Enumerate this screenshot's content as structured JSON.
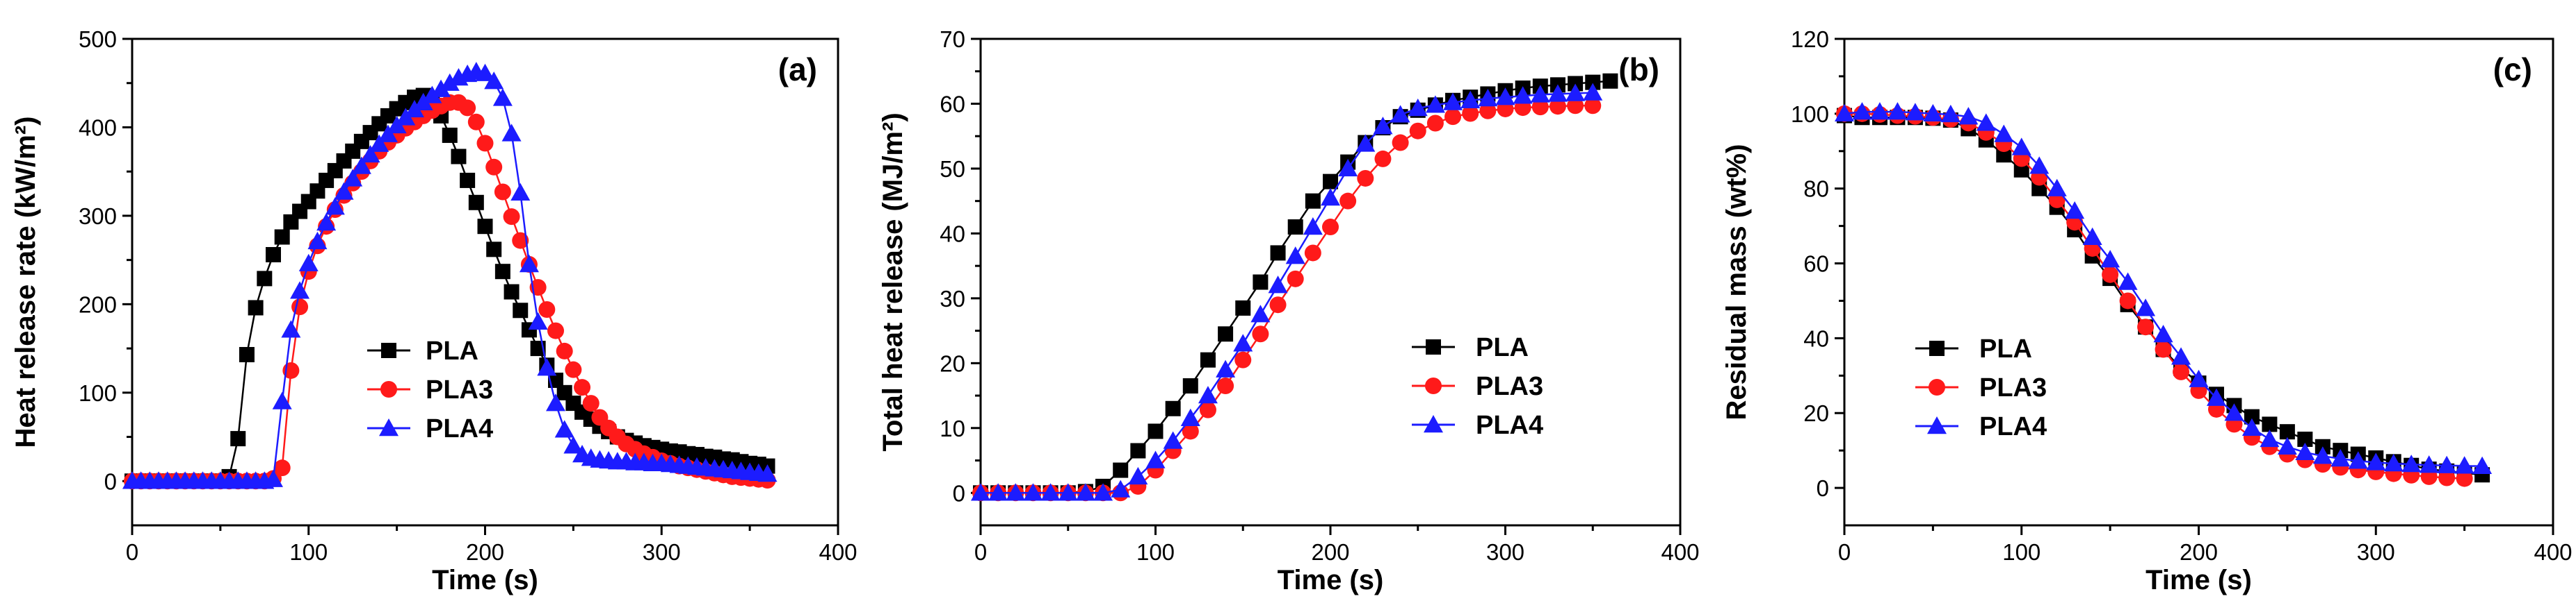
{
  "colors": {
    "PLA": "#000000",
    "PLA3": "#ff1a1a",
    "PLA4": "#1c1cff"
  },
  "markers": {
    "PLA": "square",
    "PLA3": "circle",
    "PLA4": "triangle"
  },
  "chart_data": [
    {
      "type": "line",
      "panel_label": "(a)",
      "xlabel": "Time (s)",
      "ylabel": "Heat release rate (kW/m²)",
      "xlim": [
        0,
        400
      ],
      "ylim": [
        -50,
        500
      ],
      "xticks": [
        0,
        100,
        200,
        300,
        400
      ],
      "yticks": [
        0,
        100,
        200,
        300,
        400,
        500
      ],
      "legend": [
        "PLA",
        "PLA3",
        "PLA4"
      ],
      "series": [
        {
          "name": "PLA",
          "x": [
            0,
            5,
            10,
            15,
            20,
            25,
            30,
            35,
            40,
            45,
            50,
            55,
            60,
            65,
            70,
            75,
            80,
            85,
            90,
            95,
            100,
            105,
            110,
            115,
            120,
            125,
            130,
            135,
            140,
            145,
            150,
            155,
            160,
            165,
            170,
            175,
            180,
            185,
            190,
            195,
            200,
            205,
            210,
            215,
            220,
            225,
            230,
            235,
            240,
            245,
            250,
            255,
            260,
            265,
            270,
            275,
            280,
            285,
            290,
            295,
            300,
            305,
            310,
            315,
            320,
            325,
            330,
            335,
            340,
            345,
            350,
            355,
            360
          ],
          "y": [
            0,
            0,
            0,
            0,
            0,
            0,
            0,
            0,
            0,
            0,
            0,
            5,
            48,
            143,
            196,
            229,
            256,
            276,
            293,
            305,
            316,
            328,
            340,
            351,
            362,
            373,
            384,
            394,
            404,
            413,
            421,
            428,
            434,
            436,
            428,
            413,
            391,
            367,
            340,
            315,
            288,
            262,
            237,
            214,
            193,
            171,
            150,
            131,
            114,
            100,
            88,
            78,
            70,
            62,
            56,
            50,
            46,
            43,
            40,
            38,
            36,
            34,
            33,
            31,
            30,
            28,
            27,
            25,
            24,
            22,
            20,
            19,
            17
          ]
        },
        {
          "name": "PLA3",
          "x": [
            0,
            5,
            10,
            15,
            20,
            25,
            30,
            35,
            40,
            45,
            50,
            55,
            60,
            65,
            70,
            75,
            80,
            85,
            90,
            95,
            100,
            105,
            110,
            115,
            120,
            125,
            130,
            135,
            140,
            145,
            150,
            155,
            160,
            165,
            170,
            175,
            180,
            185,
            190,
            195,
            200,
            205,
            210,
            215,
            220,
            225,
            230,
            235,
            240,
            245,
            250,
            255,
            260,
            265,
            270,
            275,
            280,
            285,
            290,
            295,
            300,
            305,
            310,
            315,
            320,
            325,
            330,
            335,
            340,
            345,
            350,
            355,
            360
          ],
          "y": [
            0,
            0,
            0,
            0,
            0,
            0,
            0,
            0,
            0,
            0,
            0,
            0,
            0,
            0,
            0,
            0,
            3,
            15,
            125,
            197,
            237,
            266,
            288,
            307,
            323,
            337,
            350,
            362,
            373,
            383,
            391,
            399,
            406,
            413,
            419,
            424,
            428,
            428,
            422,
            406,
            382,
            355,
            327,
            299,
            272,
            245,
            219,
            194,
            170,
            147,
            126,
            106,
            88,
            72,
            60,
            50,
            42,
            36,
            31,
            27,
            23,
            20,
            17,
            15,
            13,
            11,
            9,
            7,
            5,
            4,
            3,
            2,
            1
          ]
        },
        {
          "name": "PLA4",
          "x": [
            0,
            5,
            10,
            15,
            20,
            25,
            30,
            35,
            40,
            45,
            50,
            55,
            60,
            65,
            70,
            75,
            80,
            85,
            90,
            95,
            100,
            105,
            110,
            115,
            120,
            125,
            130,
            135,
            140,
            145,
            150,
            155,
            160,
            165,
            170,
            175,
            180,
            185,
            190,
            195,
            200,
            205,
            210,
            215,
            220,
            225,
            230,
            235,
            240,
            245,
            250,
            255,
            260,
            265,
            270,
            275,
            280,
            285,
            290,
            295,
            300,
            305,
            310,
            315,
            320,
            325,
            330,
            335,
            340,
            345,
            350,
            355,
            360
          ],
          "y": [
            0,
            0,
            0,
            0,
            0,
            0,
            0,
            0,
            0,
            0,
            0,
            0,
            0,
            0,
            0,
            0,
            2,
            90,
            171,
            215,
            246,
            271,
            292,
            310,
            327,
            342,
            356,
            369,
            381,
            392,
            402,
            411,
            420,
            428,
            436,
            443,
            450,
            456,
            460,
            463,
            461,
            452,
            433,
            393,
            326,
            245,
            180,
            128,
            88,
            58,
            40,
            30,
            26,
            24,
            23,
            22,
            22,
            21,
            21,
            20,
            20,
            19,
            18,
            17,
            16,
            15,
            14,
            13,
            12,
            11,
            10,
            9,
            8
          ]
        }
      ]
    },
    {
      "type": "line",
      "panel_label": "(b)",
      "xlabel": "Time (s)",
      "ylabel": "Total heat release (MJ/m²)",
      "xlim": [
        0,
        400
      ],
      "ylim": [
        -5,
        70
      ],
      "xticks": [
        0,
        100,
        200,
        300,
        400
      ],
      "yticks": [
        0,
        10,
        20,
        30,
        40,
        50,
        60,
        70
      ],
      "legend": [
        "PLA",
        "PLA3",
        "PLA4"
      ],
      "series": [
        {
          "name": "PLA",
          "x": [
            0,
            10,
            20,
            30,
            40,
            50,
            60,
            70,
            80,
            90,
            100,
            110,
            120,
            130,
            140,
            150,
            160,
            170,
            180,
            190,
            200,
            210,
            220,
            230,
            240,
            250,
            260,
            270,
            280,
            290,
            300,
            310,
            320,
            330,
            340,
            350,
            360
          ],
          "y": [
            0,
            0,
            0,
            0,
            0,
            0,
            0.2,
            1,
            3.5,
            6.5,
            9.5,
            13,
            16.5,
            20.5,
            24.5,
            28.5,
            32.5,
            37,
            41,
            45,
            48,
            51,
            54,
            56.3,
            58,
            59,
            59.8,
            60.5,
            61,
            61.5,
            62,
            62.4,
            62.7,
            62.9,
            63.1,
            63.3,
            63.5
          ]
        },
        {
          "name": "PLA3",
          "x": [
            0,
            10,
            20,
            30,
            40,
            50,
            60,
            70,
            80,
            90,
            100,
            110,
            120,
            130,
            140,
            150,
            160,
            170,
            180,
            190,
            200,
            210,
            220,
            230,
            240,
            250,
            260,
            270,
            280,
            290,
            300,
            310,
            320,
            330,
            340,
            350
          ],
          "y": [
            0,
            0,
            0,
            0,
            0,
            0,
            0,
            0,
            0,
            1,
            3.5,
            6.5,
            9.5,
            12.8,
            16.5,
            20.5,
            24.5,
            29,
            33,
            37,
            41,
            45,
            48.5,
            51.5,
            54,
            55.8,
            57,
            58,
            58.5,
            58.9,
            59.2,
            59.4,
            59.5,
            59.6,
            59.7,
            59.7
          ]
        },
        {
          "name": "PLA4",
          "x": [
            0,
            10,
            20,
            30,
            40,
            50,
            60,
            70,
            80,
            90,
            100,
            110,
            120,
            130,
            140,
            150,
            160,
            170,
            180,
            190,
            200,
            210,
            220,
            230,
            240,
            250,
            260,
            270,
            280,
            290,
            300,
            310,
            320,
            330,
            340,
            350
          ],
          "y": [
            0,
            0,
            0,
            0,
            0,
            0,
            0,
            0,
            0.5,
            2.5,
            5,
            8,
            11.5,
            15,
            19,
            23,
            27.5,
            32,
            36.5,
            41,
            45.5,
            50,
            53.8,
            56.5,
            58.3,
            59.3,
            59.8,
            60.2,
            60.5,
            60.8,
            61,
            61.2,
            61.4,
            61.5,
            61.6,
            61.7
          ]
        }
      ]
    },
    {
      "type": "line",
      "panel_label": "(c)",
      "xlabel": "Time (s)",
      "ylabel": "Residual mass (wt%)",
      "xlim": [
        0,
        400
      ],
      "ylim": [
        -10,
        120
      ],
      "xticks": [
        0,
        100,
        200,
        300,
        400
      ],
      "yticks": [
        0,
        20,
        40,
        60,
        80,
        100,
        120
      ],
      "legend": [
        "PLA",
        "PLA3",
        "PLA4"
      ],
      "series": [
        {
          "name": "PLA",
          "x": [
            0,
            10,
            20,
            30,
            40,
            50,
            60,
            70,
            80,
            90,
            100,
            110,
            120,
            130,
            140,
            150,
            160,
            170,
            180,
            190,
            200,
            210,
            220,
            230,
            240,
            250,
            260,
            270,
            280,
            290,
            300,
            310,
            320,
            330,
            340,
            350,
            360
          ],
          "y": [
            99.5,
            99,
            99,
            99,
            99,
            98.8,
            98.3,
            96,
            93,
            89,
            85,
            80,
            75,
            69,
            62,
            56,
            49,
            43,
            37,
            32,
            28,
            25,
            22,
            19,
            17,
            15,
            13,
            11,
            10,
            9,
            8,
            7,
            6,
            5,
            4.5,
            4,
            3.5
          ]
        },
        {
          "name": "PLA3",
          "x": [
            0,
            10,
            20,
            30,
            40,
            50,
            60,
            70,
            80,
            90,
            100,
            110,
            120,
            130,
            140,
            150,
            160,
            170,
            180,
            190,
            200,
            210,
            220,
            230,
            240,
            250,
            260,
            270,
            280,
            290,
            300,
            310,
            320,
            330,
            340,
            350
          ],
          "y": [
            100,
            100,
            99.8,
            99.5,
            99.3,
            99,
            98.5,
            97.5,
            95,
            92,
            88,
            83,
            77,
            71,
            64,
            57,
            50,
            43,
            37,
            31,
            26,
            21,
            17,
            13.5,
            11,
            9,
            7.5,
            6.3,
            5.5,
            4.8,
            4.3,
            3.8,
            3.4,
            3,
            2.7,
            2.5
          ]
        },
        {
          "name": "PLA4",
          "x": [
            0,
            10,
            20,
            30,
            40,
            50,
            60,
            70,
            80,
            90,
            100,
            110,
            120,
            130,
            140,
            150,
            160,
            170,
            180,
            190,
            200,
            210,
            220,
            230,
            240,
            250,
            260,
            270,
            280,
            290,
            300,
            310,
            320,
            330,
            340,
            350,
            360
          ],
          "y": [
            100,
            100.5,
            100.5,
            100.5,
            100.3,
            100,
            99.8,
            99.2,
            97.5,
            94.5,
            91,
            86,
            80,
            74,
            67,
            61,
            55,
            48,
            41,
            35,
            29,
            24,
            20,
            16,
            13,
            11,
            9.5,
            8.5,
            7.8,
            7.2,
            6.8,
            6.5,
            6.3,
            6.1,
            6,
            5.9,
            5.8
          ]
        }
      ]
    }
  ]
}
